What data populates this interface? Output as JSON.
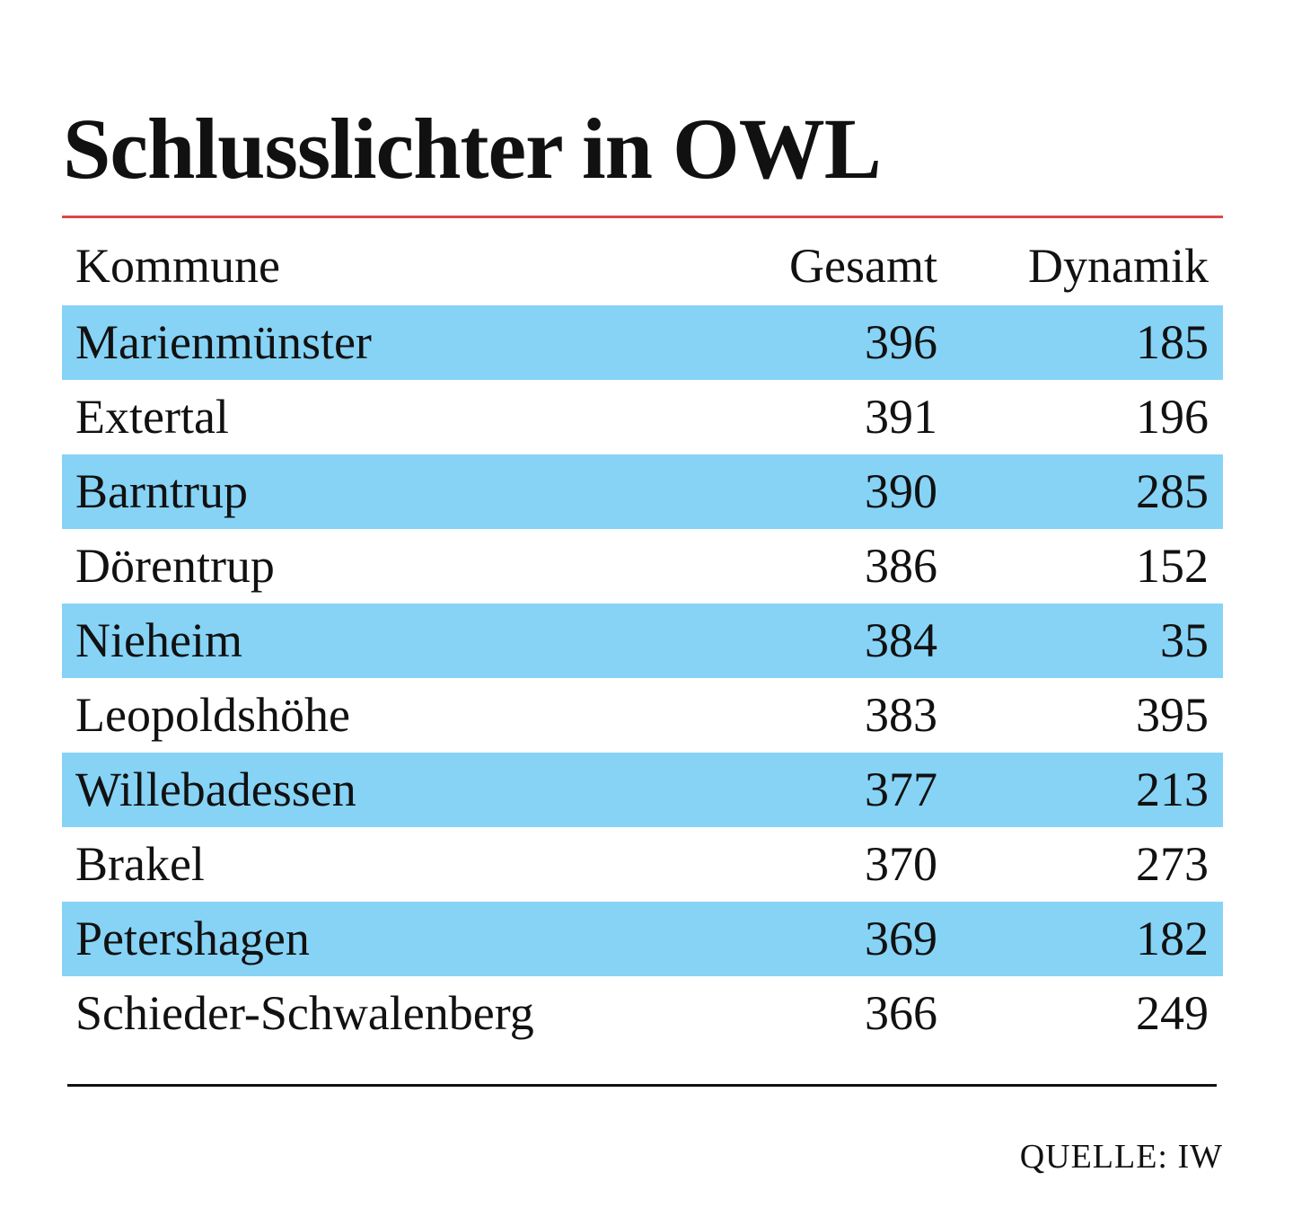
{
  "chart_data": {
    "type": "table",
    "title": "Schlusslichter in OWL",
    "columns": [
      "Kommune",
      "Gesamt",
      "Dynamik"
    ],
    "rows": [
      {
        "kommune": "Marienmünster",
        "gesamt": 396,
        "dynamik": 185
      },
      {
        "kommune": "Extertal",
        "gesamt": 391,
        "dynamik": 196
      },
      {
        "kommune": "Barntrup",
        "gesamt": 390,
        "dynamik": 285
      },
      {
        "kommune": "Dörentrup",
        "gesamt": 386,
        "dynamik": 152
      },
      {
        "kommune": "Nieheim",
        "gesamt": 384,
        "dynamik": 35
      },
      {
        "kommune": "Leopoldshöhe",
        "gesamt": 383,
        "dynamik": 395
      },
      {
        "kommune": "Willebadessen",
        "gesamt": 377,
        "dynamik": 213
      },
      {
        "kommune": "Brakel",
        "gesamt": 370,
        "dynamik": 273
      },
      {
        "kommune": "Petershagen",
        "gesamt": 369,
        "dynamik": 182
      },
      {
        "kommune": "Schieder-Schwalenberg",
        "gesamt": 366,
        "dynamik": 249
      }
    ],
    "source": "QUELLE: IW"
  },
  "colors": {
    "title_rule": "#d94a47",
    "row_shade": "#86d3f6",
    "text": "#111111"
  }
}
